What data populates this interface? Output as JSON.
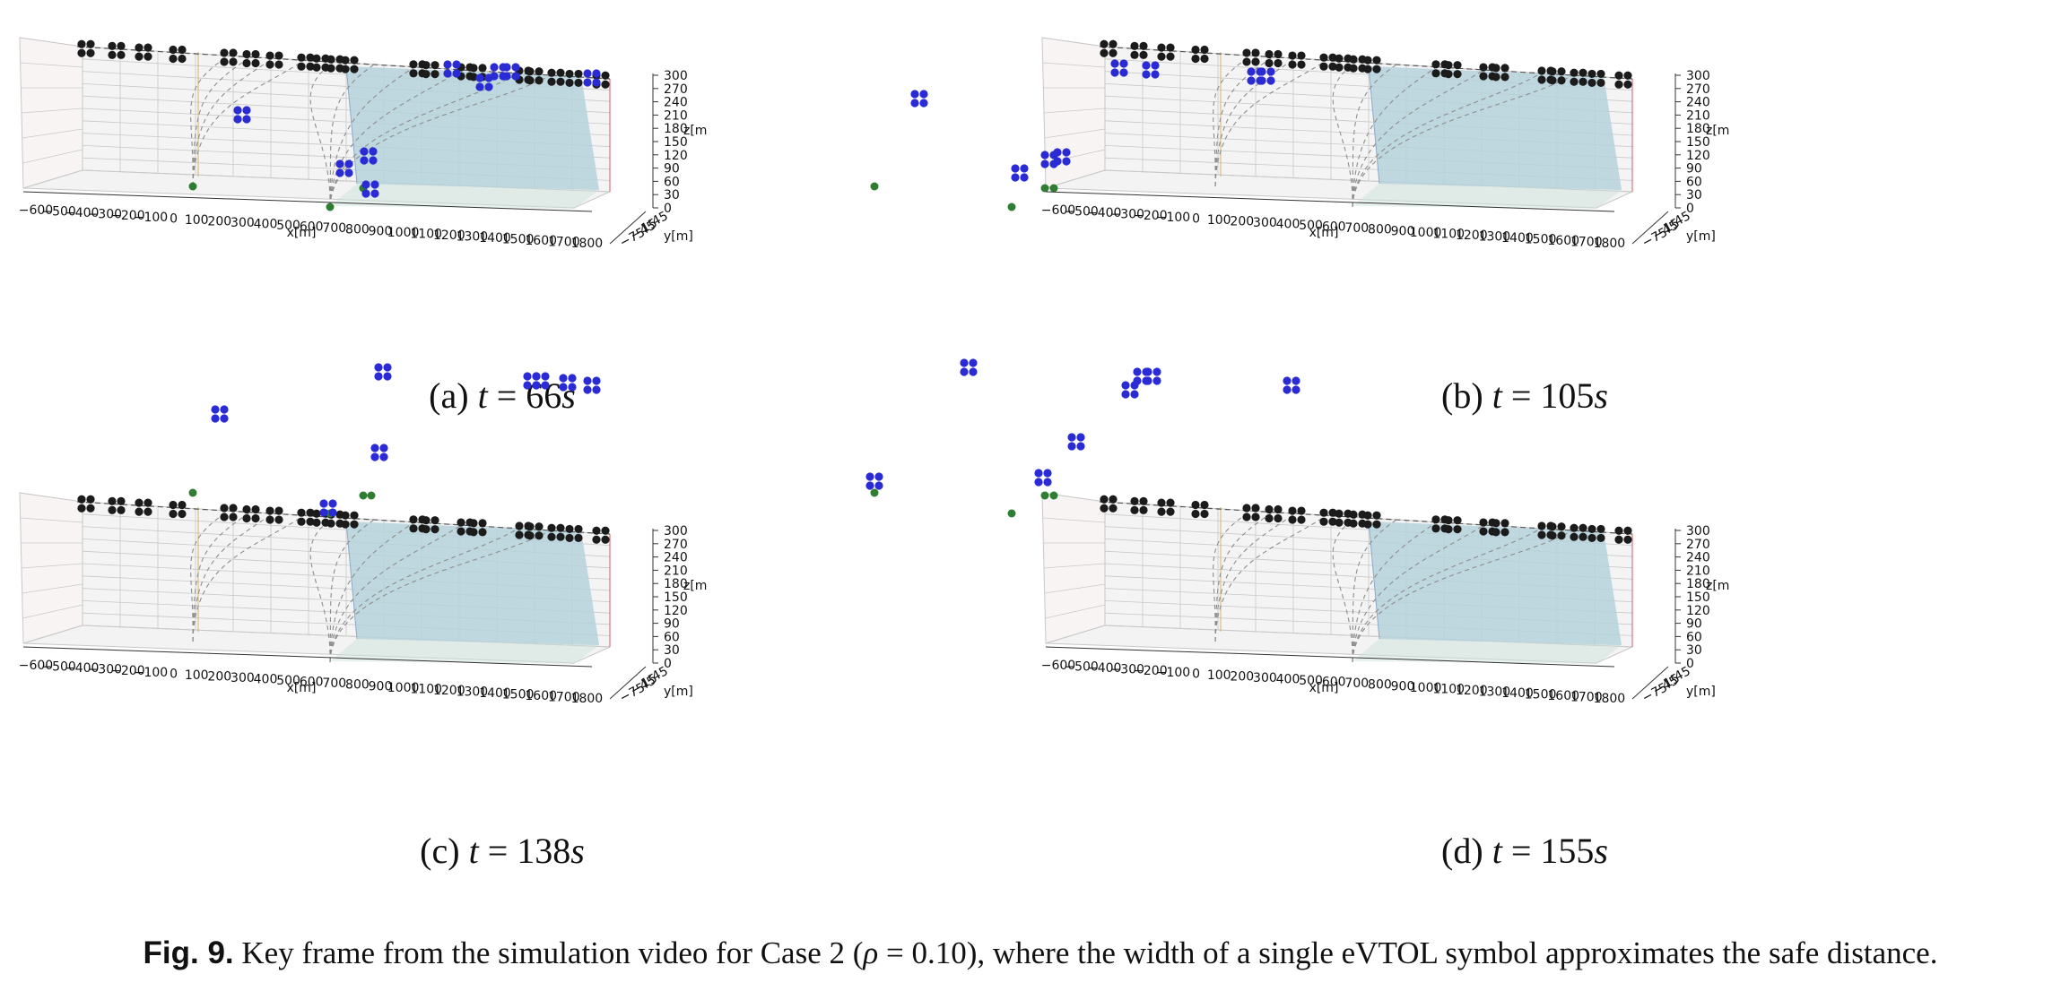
{
  "panels": [
    {
      "label": "(a)",
      "var": "t",
      "eq": "=",
      "value": "66",
      "unit": "s",
      "blue": [
        [
          270,
          128
        ],
        [
          384,
          188
        ],
        [
          411,
          174
        ],
        [
          413,
          211
        ],
        [
          504,
          77
        ],
        [
          540,
          92
        ],
        [
          556,
          80
        ],
        [
          570,
          80
        ],
        [
          660,
          87
        ]
      ],
      "green": [
        [
          215,
          208
        ],
        [
          368,
          231
        ],
        [
          405,
          210
        ]
      ]
    },
    {
      "label": "(b)",
      "var": "t",
      "eq": "=",
      "value": "105",
      "unit": "s",
      "blue": [
        [
          1025,
          110
        ],
        [
          1137,
          193
        ],
        [
          1170,
          178
        ],
        [
          1184,
          175
        ],
        [
          1248,
          76
        ],
        [
          1283,
          78
        ],
        [
          1400,
          85
        ],
        [
          1412,
          85
        ]
      ],
      "green": [
        [
          975,
          208
        ],
        [
          1128,
          231
        ],
        [
          1165,
          210
        ],
        [
          1175,
          210
        ]
      ]
    },
    {
      "label": "(c)",
      "var": "t",
      "eq": "=",
      "value": "138",
      "unit": "s",
      "blue": [
        [
          245,
          462
        ],
        [
          366,
          567
        ],
        [
          423,
          505
        ],
        [
          427,
          415
        ],
        [
          593,
          425
        ],
        [
          603,
          425
        ],
        [
          633,
          427
        ],
        [
          660,
          430
        ]
      ],
      "green": [
        [
          215,
          550
        ],
        [
          368,
          573
        ],
        [
          405,
          553
        ],
        [
          414,
          553
        ]
      ]
    },
    {
      "label": "(d)",
      "var": "t",
      "eq": "=",
      "value": "155",
      "unit": "s",
      "blue": [
        [
          975,
          537
        ],
        [
          1080,
          410
        ],
        [
          1163,
          533
        ],
        [
          1200,
          493
        ],
        [
          1260,
          435
        ],
        [
          1273,
          420
        ],
        [
          1285,
          420
        ],
        [
          1440,
          430
        ]
      ],
      "green": [
        [
          975,
          550
        ],
        [
          1128,
          573
        ],
        [
          1165,
          553
        ],
        [
          1175,
          553
        ]
      ]
    }
  ],
  "axes": {
    "x_label": "x[m]",
    "y_label": "y[m]",
    "z_label": "z[m",
    "x_ticks": [
      "−600",
      "−500",
      "−400",
      "−300",
      "−200",
      "−100",
      "0",
      "100",
      "200",
      "300",
      "400",
      "500",
      "600",
      "700",
      "800",
      "900",
      "1000",
      "1100",
      "1200",
      "1300",
      "1400",
      "1500",
      "1600",
      "1700",
      "1800"
    ],
    "z_ticks": [
      "300",
      "270",
      "240",
      "210",
      "180",
      "150",
      "120",
      "90",
      "60",
      "30",
      "0"
    ],
    "y_ticks": [
      "45",
      "15",
      "−45",
      "−75"
    ]
  },
  "caption": {
    "label": "Fig. 9.",
    "text_before": "Key frame from the simulation video for Case 2 (",
    "rho": "ρ",
    "eq": " = 0.10",
    "text_after": "), where the width of a single eVTOL symbol approximates the safe distance."
  },
  "colors": {
    "corridor": "#9fc0df",
    "corridor_side": "#c9e0d6",
    "evtol_waiting": "#1b1b1b",
    "evtol_active": "#2b2bd6",
    "vertiport": "#2e7d32",
    "grid": "#c8c8c8"
  }
}
